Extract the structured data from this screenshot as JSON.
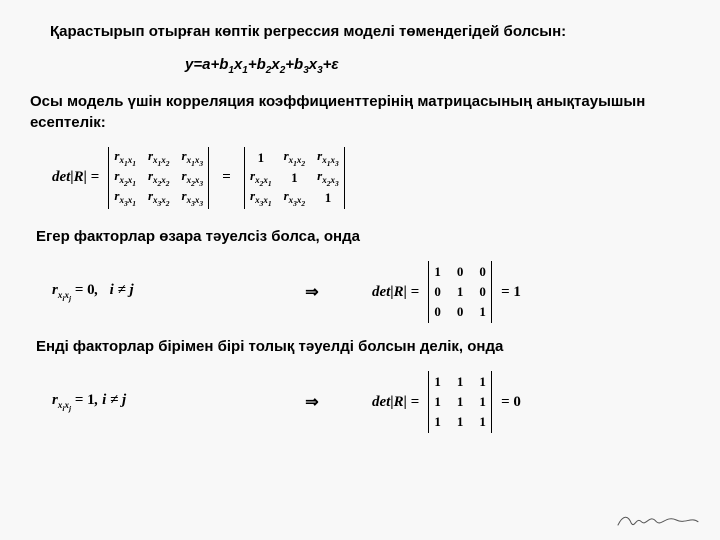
{
  "title": "Қарастырып отырған көптік регрессия моделі төмендегідей болсын:",
  "equation_html": "y=a+b<sub>1</sub>x<sub>1</sub>+b<sub>2</sub>x<sub>2</sub>+b<sub>3</sub>x<sub>3</sub>+ε",
  "para2": "Осы модель үшін корреляция коэффициенттерінің матрицасының анықтауышын есептелік:",
  "detR": "det|R| =",
  "eqSign": "=",
  "matrix_r": [
    [
      "r<span class=\"sub\">x<sub>1</sub>x<sub>1</sub></span>",
      "r<span class=\"sub\">x<sub>1</sub>x<sub>2</sub></span>",
      "r<span class=\"sub\">x<sub>1</sub>x<sub>3</sub></span>"
    ],
    [
      "r<span class=\"sub\">x<sub>2</sub>x<sub>1</sub></span>",
      "r<span class=\"sub\">x<sub>2</sub>x<sub>2</sub></span>",
      "r<span class=\"sub\">x<sub>2</sub>x<sub>3</sub></span>"
    ],
    [
      "r<span class=\"sub\">x<sub>3</sub>x<sub>1</sub></span>",
      "r<span class=\"sub\">x<sub>3</sub>x<sub>2</sub></span>",
      "r<span class=\"sub\">x<sub>3</sub>x<sub>3</sub></span>"
    ]
  ],
  "matrix_r_diag": [
    [
      "<span class=\"n\">1</span>",
      "r<span class=\"sub\">x<sub>1</sub>x<sub>2</sub></span>",
      "r<span class=\"sub\">x<sub>1</sub>x<sub>3</sub></span>"
    ],
    [
      "r<span class=\"sub\">x<sub>2</sub>x<sub>1</sub></span>",
      "<span class=\"n\">1</span>",
      "r<span class=\"sub\">x<sub>2</sub>x<sub>3</sub></span>"
    ],
    [
      "r<span class=\"sub\">x<sub>3</sub>x<sub>1</sub></span>",
      "r<span class=\"sub\">x<sub>3</sub>x<sub>2</sub></span>",
      "<span class=\"n\">1</span>"
    ]
  ],
  "para3": "Егер факторлар өзара тәуелсіз болса, онда",
  "case1_lhs_html": "r<span class=\"sub\">x<sub>i</sub>x<sub>j</sub></span> = <span class=\"n\">0</span>,&nbsp;&nbsp; i &ne; j",
  "arrow": "⇒",
  "identity": [
    [
      "1",
      "0",
      "0"
    ],
    [
      "0",
      "1",
      "0"
    ],
    [
      "0",
      "0",
      "1"
    ]
  ],
  "eq1": "= 1",
  "para4": "Енді факторлар бірімен бірі толық тәуелді болсын делік, онда",
  "case2_lhs_html": "r<span class=\"sub\">x<sub>i</sub>x<sub>j</sub></span> = <span class=\"n\">1</span>, i &ne; j",
  "ones": [
    [
      "1",
      "1",
      "1"
    ],
    [
      "1",
      "1",
      "1"
    ],
    [
      "1",
      "1",
      "1"
    ]
  ],
  "eq0": "= 0"
}
